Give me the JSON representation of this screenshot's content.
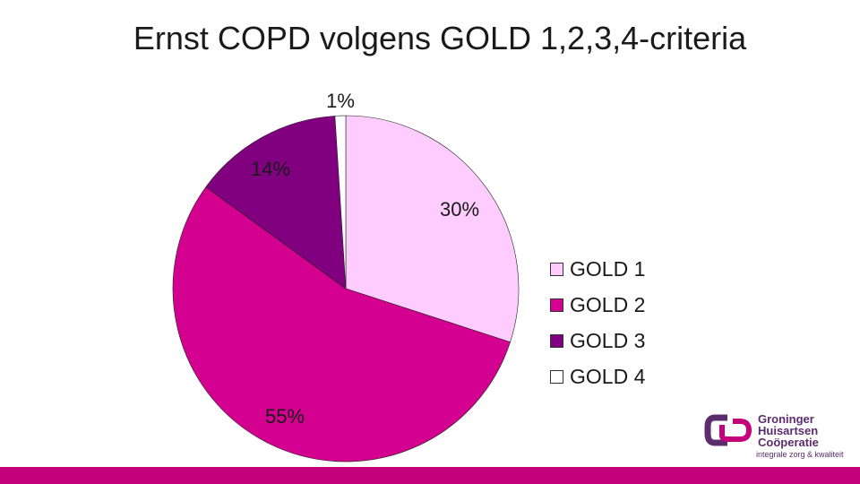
{
  "chart_data": {
    "type": "pie",
    "title": "Ernst COPD volgens GOLD 1,2,3,4-criteria",
    "categories": [
      "GOLD 1",
      "GOLD 2",
      "GOLD 3",
      "GOLD 4"
    ],
    "values": [
      30,
      55,
      14,
      1
    ],
    "labels": [
      "30%",
      "55%",
      "14%",
      "1%"
    ],
    "colors": [
      "#ffccff",
      "#d4008f",
      "#800080",
      "#ffffff"
    ],
    "legend_position": "right"
  },
  "logo": {
    "lines": [
      "Groninger",
      "Huisartsen",
      "Coöperatie"
    ],
    "tagline": "integrale zorg & kwaliteit"
  }
}
